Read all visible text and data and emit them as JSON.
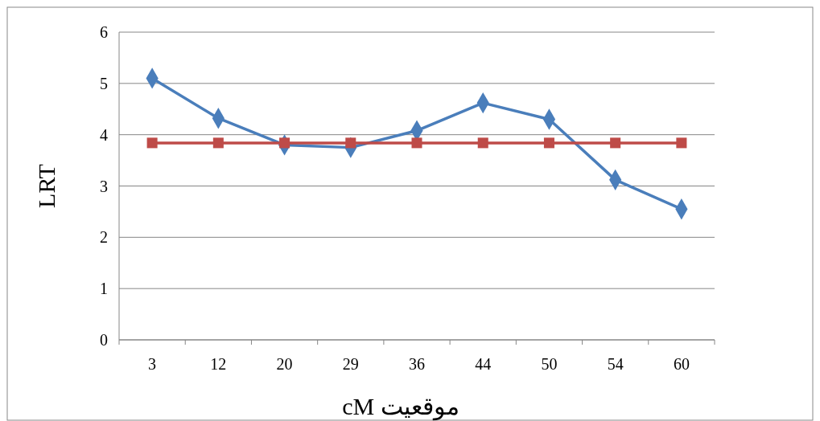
{
  "chart_data": {
    "type": "line",
    "xlabel": "cM موقعیت",
    "ylabel": "LRT",
    "categories": [
      "3",
      "12",
      "20",
      "29",
      "36",
      "44",
      "50",
      "54",
      "60"
    ],
    "series": [
      {
        "color": "#4a7ebb",
        "marker": "diamond",
        "values": [
          5.1,
          4.32,
          3.8,
          3.75,
          4.08,
          4.62,
          4.3,
          3.12,
          2.55
        ]
      },
      {
        "color": "#be4b48",
        "marker": "square",
        "values": [
          3.84,
          3.84,
          3.84,
          3.84,
          3.84,
          3.84,
          3.84,
          3.84,
          3.84
        ]
      }
    ],
    "ylim": [
      0,
      6
    ],
    "yticks": [
      0,
      1,
      2,
      3,
      4,
      5,
      6
    ],
    "grid": "y",
    "line_style": "solid"
  }
}
